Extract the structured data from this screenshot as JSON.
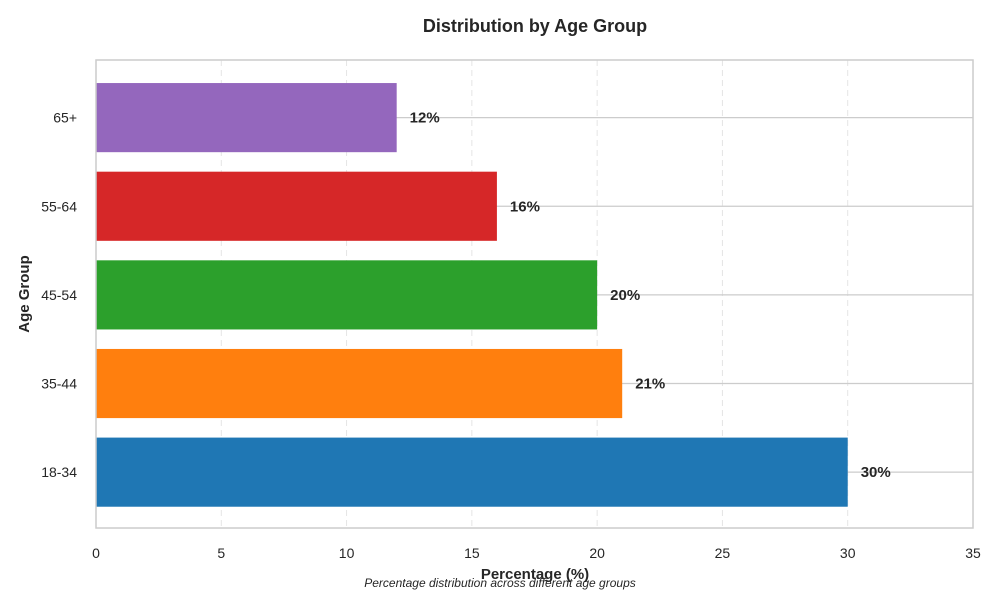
{
  "chart_data": {
    "type": "bar",
    "orientation": "horizontal",
    "title": "Distribution by Age Group",
    "xlabel": "Percentage (%)",
    "ylabel": "Age Group",
    "caption": "Percentage distribution across different age groups",
    "categories": [
      "18-34",
      "35-44",
      "45-54",
      "55-64",
      "65+"
    ],
    "values": [
      30,
      21,
      20,
      16,
      12
    ],
    "value_labels": [
      "30%",
      "21%",
      "20%",
      "16%",
      "12%"
    ],
    "colors": [
      "#1f77b4",
      "#ff7f0e",
      "#2ca02c",
      "#d62728",
      "#9467bd"
    ],
    "xlim": [
      0,
      35
    ],
    "xticks": [
      0,
      5,
      10,
      15,
      20,
      25,
      30,
      35
    ],
    "grid": {
      "x": "dashed",
      "y": "solid"
    }
  }
}
